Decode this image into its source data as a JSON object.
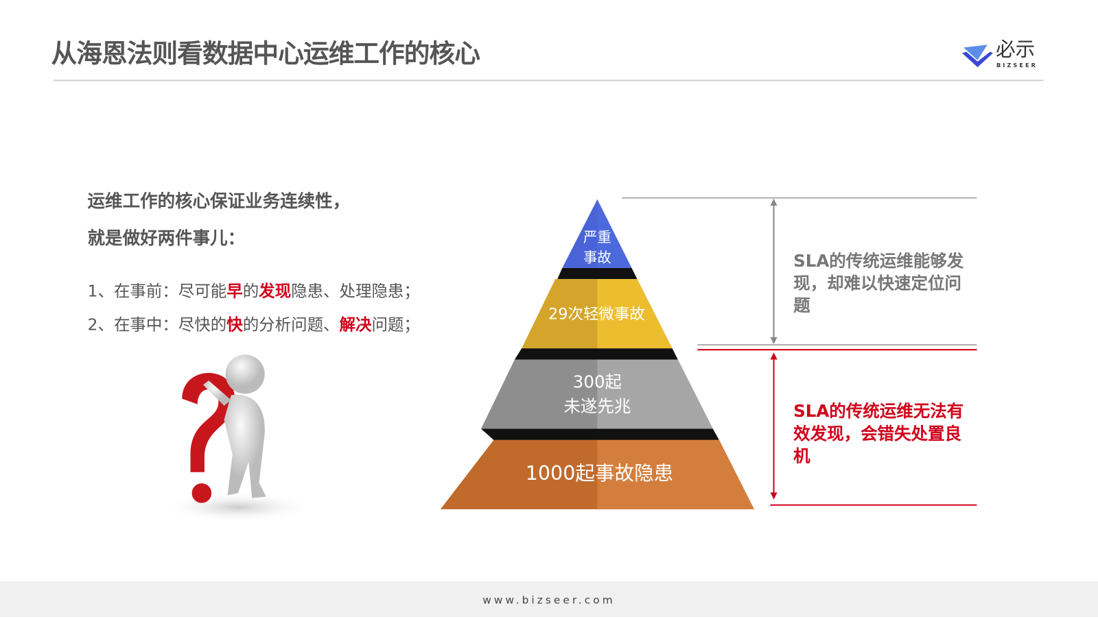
{
  "title": "从海恩法则看数据中心运维工作的核心",
  "logo": {
    "name": "必示",
    "sub": "BIZSEER"
  },
  "lead": [
    "运维工作的核心保证业务连续性，",
    "就是做好两件事儿："
  ],
  "items": [
    {
      "parts": [
        "1、在事前：尽可能",
        "早",
        "的",
        "发现",
        "隐患、处理隐患；"
      ]
    },
    {
      "parts": [
        "2、在事中：尽快的",
        "快",
        "的分析问题、",
        "解决",
        "问题；"
      ]
    }
  ],
  "pyramid": {
    "tiers": [
      {
        "lines": [
          "严重",
          "事故"
        ],
        "color": "#4a64d8"
      },
      {
        "lines": [
          "29次轻微事故"
        ],
        "color": "#e6b22a"
      },
      {
        "lines": [
          "300起",
          "未遂先兆"
        ],
        "color": "#9a9a9a"
      },
      {
        "lines": [
          "1000起事故隐患"
        ],
        "color": "#cf7535"
      }
    ]
  },
  "annotations": {
    "upper": {
      "text": "SLA的传统运维能够发现，却难以快速定位问题",
      "color": "#777777"
    },
    "lower": {
      "text": "SLA的传统运维无法有效发现，会错失处置良机",
      "color": "#d0021b"
    }
  },
  "footer": "www.bizseer.com"
}
